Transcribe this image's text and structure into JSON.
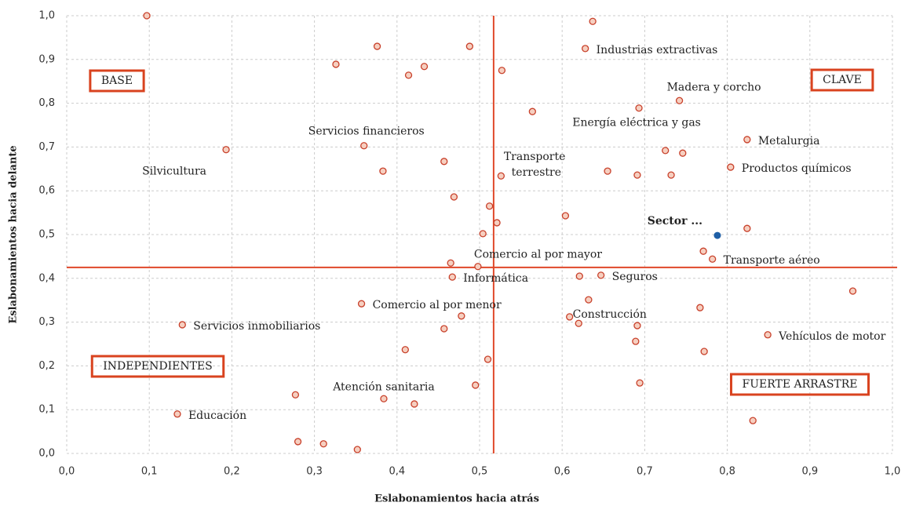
{
  "chart_data": {
    "type": "scatter",
    "x_label": "Eslabonamientos hacia atrás",
    "y_label": "Eslabonamientos hacia delante",
    "xlim": [
      0,
      1
    ],
    "ylim": [
      0,
      1
    ],
    "xticks": [
      {
        "value": 0,
        "label": "0,0"
      },
      {
        "value": 0.1,
        "label": "0,1"
      },
      {
        "value": 0.2,
        "label": "0,2"
      },
      {
        "value": 0.3,
        "label": "0,3"
      },
      {
        "value": 0.4,
        "label": "0,4"
      },
      {
        "value": 0.5,
        "label": "0,5"
      },
      {
        "value": 0.6,
        "label": "0,6"
      },
      {
        "value": 0.7,
        "label": "0,7"
      },
      {
        "value": 0.8,
        "label": "0,8"
      },
      {
        "value": 0.9,
        "label": "0,9"
      },
      {
        "value": 1,
        "label": "1,0"
      }
    ],
    "yticks": [
      {
        "value": 0,
        "label": "0,0"
      },
      {
        "value": 0.1,
        "label": "0,1"
      },
      {
        "value": 0.2,
        "label": "0,2"
      },
      {
        "value": 0.3,
        "label": "0,3"
      },
      {
        "value": 0.4,
        "label": "0,4"
      },
      {
        "value": 0.5,
        "label": "0,5"
      },
      {
        "value": 0.6,
        "label": "0,6"
      },
      {
        "value": 0.7,
        "label": "0,7"
      },
      {
        "value": 0.8,
        "label": "0,8"
      },
      {
        "value": 0.9,
        "label": "0,9"
      },
      {
        "value": 1,
        "label": "1,0"
      }
    ],
    "grid": true,
    "color": "#f6cfc0",
    "edge_color": "#c8402a",
    "x": [
      0.097,
      0.637,
      0.376,
      0.488,
      0.628,
      0.326,
      0.433,
      0.527,
      0.414,
      0.742,
      0.693,
      0.564,
      0.824,
      0.36,
      0.193,
      0.725,
      0.746,
      0.457,
      0.804,
      0.383,
      0.655,
      0.526,
      0.691,
      0.732,
      0.469,
      0.512,
      0.604,
      0.521,
      0.824,
      0.504,
      0.771,
      0.782,
      0.465,
      0.498,
      0.467,
      0.621,
      0.647,
      0.952,
      0.357,
      0.632,
      0.767,
      0.478,
      0.609,
      0.62,
      0.14,
      0.691,
      0.457,
      0.849,
      0.689,
      0.41,
      0.772,
      0.51,
      0.694,
      0.495,
      0.277,
      0.384,
      0.421,
      0.134,
      0.831,
      0.28,
      0.311,
      0.352
    ],
    "y": [
      1.0,
      0.987,
      0.93,
      0.93,
      0.925,
      0.889,
      0.884,
      0.875,
      0.864,
      0.806,
      0.789,
      0.781,
      0.717,
      0.703,
      0.694,
      0.692,
      0.686,
      0.667,
      0.654,
      0.645,
      0.645,
      0.634,
      0.636,
      0.636,
      0.586,
      0.565,
      0.543,
      0.527,
      0.514,
      0.502,
      0.462,
      0.444,
      0.435,
      0.427,
      0.403,
      0.405,
      0.407,
      0.371,
      0.342,
      0.351,
      0.333,
      0.314,
      0.312,
      0.297,
      0.294,
      0.292,
      0.285,
      0.271,
      0.256,
      0.237,
      0.233,
      0.215,
      0.161,
      0.156,
      0.134,
      0.125,
      0.113,
      0.09,
      0.075,
      0.027,
      0.022,
      0.009
    ],
    "labels": [
      null,
      null,
      null,
      null,
      "Industrias extractivas",
      null,
      null,
      null,
      null,
      "Madera y corcho",
      "Energía eléctrica y gas",
      null,
      "Metalurgia",
      "Servicios financieros",
      "Silvicultura",
      null,
      null,
      null,
      "Productos químicos",
      null,
      null,
      "Transporte terrestre",
      null,
      null,
      null,
      null,
      null,
      null,
      null,
      null,
      null,
      "Transporte aéreo",
      null,
      "Comercio al por mayor",
      "Informática",
      null,
      "Seguros",
      null,
      "Comercio al por menor",
      null,
      null,
      null,
      "Construcción",
      null,
      "Servicios inmobiliarios",
      null,
      null,
      "Vehículos de motor",
      null,
      null,
      null,
      null,
      null,
      null,
      null,
      "Atención sanitaria",
      null,
      "Educación",
      null,
      null,
      null,
      null
    ],
    "highlight": {
      "x": 0.788,
      "y": 0.498,
      "label": "Sector ...",
      "color": "#1f5fa6"
    },
    "reference_lines": {
      "x": 0.517,
      "y": 0.425,
      "color": "#e0482a"
    },
    "quadrants": [
      "BASE",
      "CLAVE",
      "INDEPENDIENTES",
      "FUERTE ARRASTRE"
    ]
  }
}
